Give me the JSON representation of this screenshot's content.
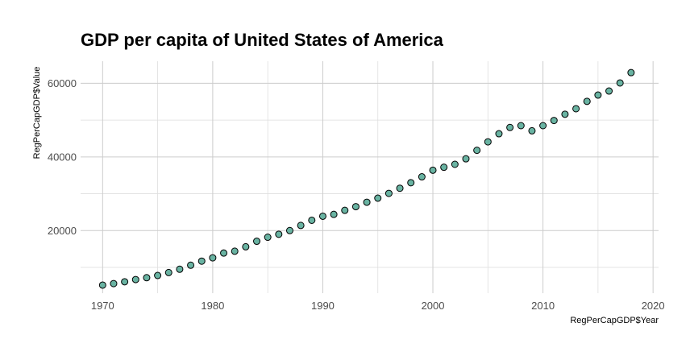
{
  "chart_data": {
    "type": "scatter",
    "title": "GDP per capita of United States of America",
    "xlabel": "RegPerCapGDP$Year",
    "ylabel": "RegPerCapGDP$Value",
    "xlim": [
      1968,
      2020.5
    ],
    "ylim": [
      3000,
      66000
    ],
    "x_ticks": [
      1970,
      1980,
      1990,
      2000,
      2010,
      2020
    ],
    "x_tick_labels": [
      "1970",
      "1980",
      "1990",
      "2000",
      "2010",
      "2020"
    ],
    "x_minor_ticks": [
      1975,
      1985,
      1995,
      2005,
      2015
    ],
    "y_ticks": [
      20000,
      40000,
      60000
    ],
    "y_tick_labels": [
      "20000",
      "40000",
      "60000"
    ],
    "y_minor_ticks": [
      10000,
      30000,
      50000
    ],
    "grid": true,
    "point_color": "#69b3a2",
    "point_outline": "#000000",
    "series": [
      {
        "x": [
          1970,
          1971,
          1972,
          1973,
          1974,
          1975,
          1976,
          1977,
          1978,
          1979,
          1980,
          1981,
          1982,
          1983,
          1984,
          1985,
          1986,
          1987,
          1988,
          1989,
          1990,
          1991,
          1992,
          1993,
          1994,
          1995,
          1996,
          1997,
          1998,
          1999,
          2000,
          2001,
          2002,
          2003,
          2004,
          2005,
          2006,
          2007,
          2008,
          2009,
          2010,
          2011,
          2012,
          2013,
          2014,
          2015,
          2016,
          2017,
          2018
        ],
        "y": [
          5200,
          5600,
          6100,
          6700,
          7200,
          7800,
          8600,
          9500,
          10600,
          11700,
          12600,
          13900,
          14400,
          15600,
          17100,
          18200,
          19000,
          20000,
          21400,
          22800,
          23900,
          24400,
          25500,
          26500,
          27700,
          28800,
          30100,
          31500,
          33000,
          34600,
          36400,
          37200,
          38000,
          39500,
          41800,
          44100,
          46300,
          48000,
          48500,
          47100,
          48500,
          49900,
          51600,
          53100,
          55100,
          56800,
          57900,
          60100,
          62900
        ]
      }
    ]
  }
}
